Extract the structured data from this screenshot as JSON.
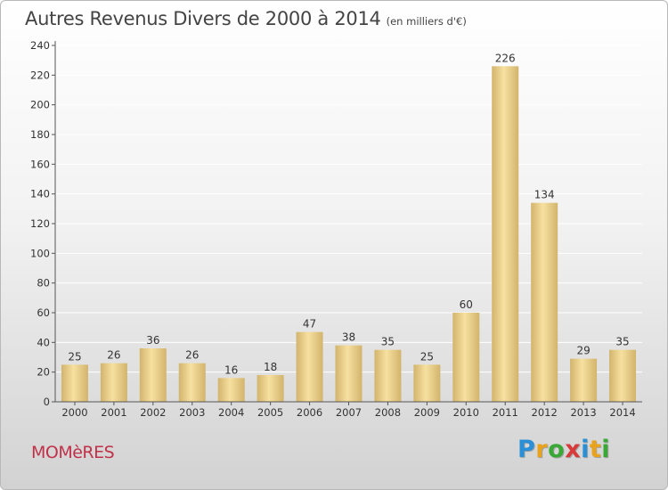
{
  "title": "Autres Revenus Divers de 2000 à 2014",
  "subtitle": "(en milliers d'€)",
  "commune": "MOMèRES",
  "logo": {
    "letters": [
      "P",
      "r",
      "o",
      "x",
      "i",
      "t",
      "i"
    ],
    "colors": [
      "#2a8fd6",
      "#e8a21c",
      "#3aa836",
      "#d83a3a",
      "#2a8fd6",
      "#e8a21c",
      "#3aa836"
    ]
  },
  "colors": {
    "bar_light": "#f7e0a0",
    "bar_dark": "#d2b46c",
    "grid": "#ffffff",
    "axis": "#555555",
    "text": "#333333"
  },
  "chart_data": {
    "type": "bar",
    "categories": [
      "2000",
      "2001",
      "2002",
      "2003",
      "2004",
      "2005",
      "2006",
      "2007",
      "2008",
      "2009",
      "2010",
      "2011",
      "2012",
      "2013",
      "2014"
    ],
    "values": [
      25,
      26,
      36,
      26,
      16,
      18,
      47,
      38,
      35,
      25,
      60,
      226,
      134,
      29,
      35
    ],
    "yticks": [
      0,
      20,
      40,
      60,
      80,
      100,
      120,
      140,
      160,
      180,
      200,
      220,
      240
    ],
    "ylim": [
      0,
      240
    ],
    "grid": true,
    "data_labels": true
  }
}
